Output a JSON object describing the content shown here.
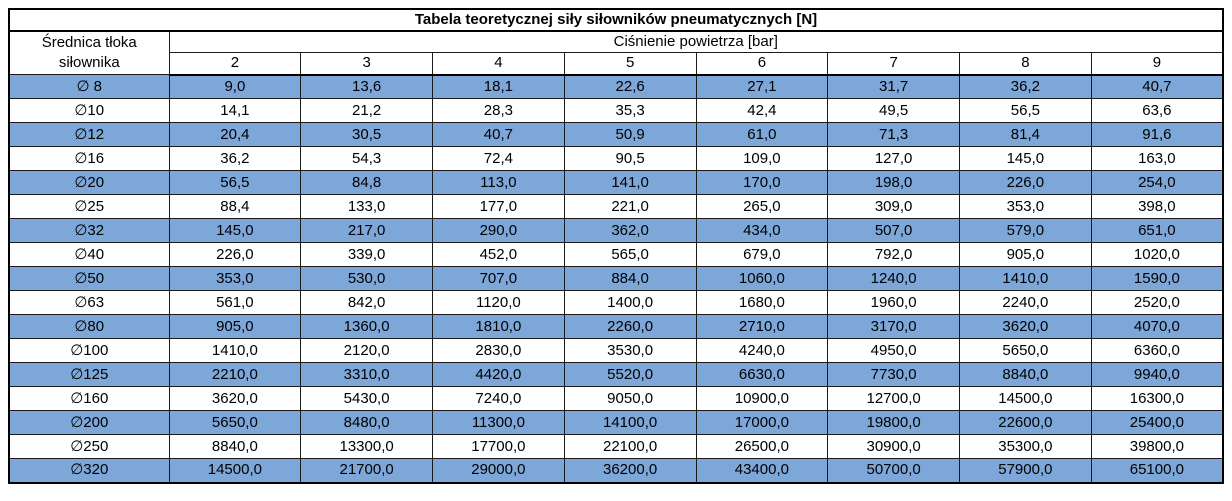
{
  "colors": {
    "row_highlight": "#7da7d9",
    "row_plain": "#ffffff",
    "border": "#1a1a1a",
    "border_strong": "#000000",
    "text": "#000000"
  },
  "chart_data": {
    "type": "table",
    "title": "Tabela teoretycznej siły siłowników pneumatycznych [N]",
    "row_header_label": "Średnica tłoka siłownika",
    "column_group_label": "Ciśnienie powietrza [bar]",
    "pressure_bar": [
      "2",
      "3",
      "4",
      "5",
      "6",
      "7",
      "8",
      "9"
    ],
    "layout": {
      "striping": "first data row highlighted blue, then alternating",
      "grid": true
    },
    "rows": [
      {
        "diameter": "∅ 8",
        "values": [
          "9,0",
          "13,6",
          "18,1",
          "22,6",
          "27,1",
          "31,7",
          "36,2",
          "40,7"
        ]
      },
      {
        "diameter": "∅10",
        "values": [
          "14,1",
          "21,2",
          "28,3",
          "35,3",
          "42,4",
          "49,5",
          "56,5",
          "63,6"
        ]
      },
      {
        "diameter": "∅12",
        "values": [
          "20,4",
          "30,5",
          "40,7",
          "50,9",
          "61,0",
          "71,3",
          "81,4",
          "91,6"
        ]
      },
      {
        "diameter": "∅16",
        "values": [
          "36,2",
          "54,3",
          "72,4",
          "90,5",
          "109,0",
          "127,0",
          "145,0",
          "163,0"
        ]
      },
      {
        "diameter": "∅20",
        "values": [
          "56,5",
          "84,8",
          "113,0",
          "141,0",
          "170,0",
          "198,0",
          "226,0",
          "254,0"
        ]
      },
      {
        "diameter": "∅25",
        "values": [
          "88,4",
          "133,0",
          "177,0",
          "221,0",
          "265,0",
          "309,0",
          "353,0",
          "398,0"
        ]
      },
      {
        "diameter": "∅32",
        "values": [
          "145,0",
          "217,0",
          "290,0",
          "362,0",
          "434,0",
          "507,0",
          "579,0",
          "651,0"
        ]
      },
      {
        "diameter": "∅40",
        "values": [
          "226,0",
          "339,0",
          "452,0",
          "565,0",
          "679,0",
          "792,0",
          "905,0",
          "1020,0"
        ]
      },
      {
        "diameter": "∅50",
        "values": [
          "353,0",
          "530,0",
          "707,0",
          "884,0",
          "1060,0",
          "1240,0",
          "1410,0",
          "1590,0"
        ]
      },
      {
        "diameter": "∅63",
        "values": [
          "561,0",
          "842,0",
          "1120,0",
          "1400,0",
          "1680,0",
          "1960,0",
          "2240,0",
          "2520,0"
        ]
      },
      {
        "diameter": "∅80",
        "values": [
          "905,0",
          "1360,0",
          "1810,0",
          "2260,0",
          "2710,0",
          "3170,0",
          "3620,0",
          "4070,0"
        ]
      },
      {
        "diameter": "∅100",
        "values": [
          "1410,0",
          "2120,0",
          "2830,0",
          "3530,0",
          "4240,0",
          "4950,0",
          "5650,0",
          "6360,0"
        ]
      },
      {
        "diameter": "∅125",
        "values": [
          "2210,0",
          "3310,0",
          "4420,0",
          "5520,0",
          "6630,0",
          "7730,0",
          "8840,0",
          "9940,0"
        ]
      },
      {
        "diameter": "∅160",
        "values": [
          "3620,0",
          "5430,0",
          "7240,0",
          "9050,0",
          "10900,0",
          "12700,0",
          "14500,0",
          "16300,0"
        ]
      },
      {
        "diameter": "∅200",
        "values": [
          "5650,0",
          "8480,0",
          "11300,0",
          "14100,0",
          "17000,0",
          "19800,0",
          "22600,0",
          "25400,0"
        ]
      },
      {
        "diameter": "∅250",
        "values": [
          "8840,0",
          "13300,0",
          "17700,0",
          "22100,0",
          "26500,0",
          "30900,0",
          "35300,0",
          "39800,0"
        ]
      },
      {
        "diameter": "∅320",
        "values": [
          "14500,0",
          "21700,0",
          "29000,0",
          "36200,0",
          "43400,0",
          "50700,0",
          "57900,0",
          "65100,0"
        ]
      }
    ]
  }
}
